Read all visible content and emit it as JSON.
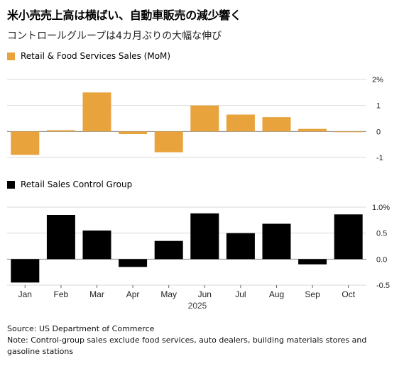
{
  "title": "米小売売上高は横ばい、自動車販売の減少響く",
  "subtitle": "コントロールグループは4カ月ぶりの大幅な伸び",
  "colors": {
    "orange": "#E8A33D",
    "black": "#000000",
    "grid": "#d9d9d9",
    "zero": "#888888"
  },
  "chart_data": [
    {
      "type": "bar",
      "legend": "Retail & Food Services Sales (MoM)",
      "categories": [
        "Jan",
        "Feb",
        "Mar",
        "Apr",
        "May",
        "Jun",
        "Jul",
        "Aug",
        "Sep",
        "Oct"
      ],
      "values": [
        -0.9,
        0.05,
        1.5,
        -0.1,
        -0.8,
        1.0,
        0.65,
        0.55,
        0.1,
        0.0
      ],
      "ylim": [
        -1,
        2
      ],
      "yticks": [
        {
          "value": 2,
          "label": "2%"
        },
        {
          "value": 1,
          "label": "1"
        },
        {
          "value": 0,
          "label": "0"
        },
        {
          "value": -1,
          "label": "-1"
        }
      ],
      "color": "#E8A33D"
    },
    {
      "type": "bar",
      "legend": "Retail Sales Control Group",
      "categories": [
        "Jan",
        "Feb",
        "Mar",
        "Apr",
        "May",
        "Jun",
        "Jul",
        "Aug",
        "Sep",
        "Oct"
      ],
      "values": [
        -0.45,
        0.85,
        0.55,
        -0.15,
        0.35,
        0.88,
        0.5,
        0.68,
        -0.1,
        0.86
      ],
      "ylim": [
        -0.5,
        1.0
      ],
      "yticks": [
        {
          "value": 1.0,
          "label": "1.0%"
        },
        {
          "value": 0.5,
          "label": "0.5"
        },
        {
          "value": 0.0,
          "label": "0.0"
        },
        {
          "value": -0.5,
          "label": "-0.5"
        }
      ],
      "xlabel": "2025",
      "color": "#000000"
    }
  ],
  "footer": {
    "source": "Source: US Department of Commerce",
    "note": "Note: Control-group sales exclude food services, auto dealers, building materials stores and gasoline stations"
  }
}
